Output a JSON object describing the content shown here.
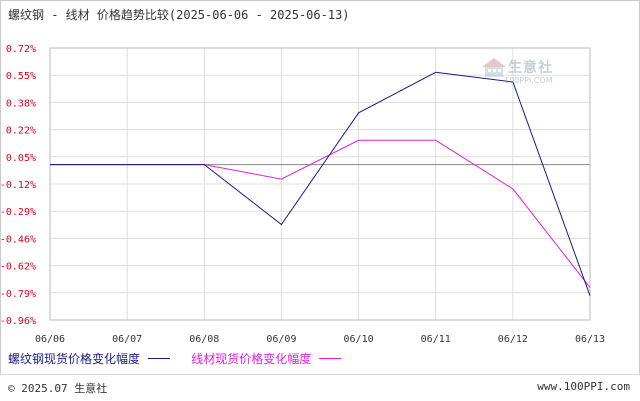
{
  "title": "螺纹钢 - 线材 价格趋势比较(2025-06-06 - 2025-06-13)",
  "watermark": {
    "brand": "生意社",
    "url": "100PPI.COM",
    "icon": "house-logo-icon"
  },
  "footer": {
    "copyright": "© 2025.07 生意社",
    "site": "www.100PPI.com"
  },
  "colors": {
    "series1": "#1a1a8c",
    "series2": "#e020e0",
    "yticks": "#e2001a",
    "grid": "#dddddd",
    "axis": "#888888"
  },
  "chart_data": {
    "type": "line",
    "x": [
      "06/06",
      "06/07",
      "06/08",
      "06/09",
      "06/10",
      "06/11",
      "06/12",
      "06/13"
    ],
    "yticks": [
      "0.72%",
      "0.55%",
      "0.38%",
      "0.22%",
      "0.05%",
      "-0.12%",
      "-0.29%",
      "-0.46%",
      "-0.62%",
      "-0.79%",
      "-0.96%"
    ],
    "ylim": [
      -0.96,
      0.72
    ],
    "grid": true,
    "legend_position": "bottom-left",
    "series": [
      {
        "name": "螺纹钢现货价格变化幅度",
        "values": [
          0,
          0,
          0,
          -0.37,
          0.32,
          0.57,
          0.51,
          -0.81
        ]
      },
      {
        "name": "线材现货价格变化幅度",
        "values": [
          0,
          0,
          0,
          -0.09,
          0.15,
          0.15,
          -0.15,
          -0.76
        ]
      }
    ]
  }
}
